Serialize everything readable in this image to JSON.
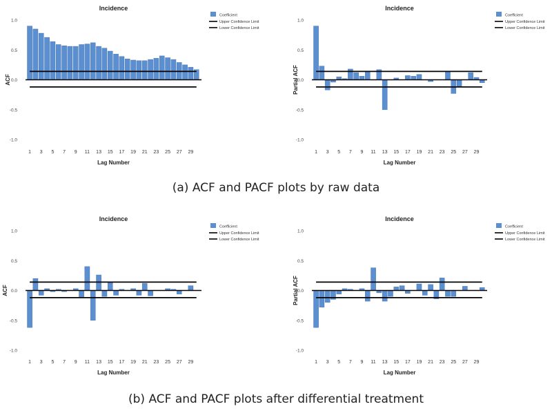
{
  "captions": {
    "top": "(a) ACF and PACF plots by raw data",
    "bottom": "(b) ACF and PACF plots after differential treatment"
  },
  "colors": {
    "bar": "#5b8fcf",
    "bar_edge": "#3f6fae",
    "axis": "#000000",
    "text": "#222222"
  },
  "chart_data": [
    {
      "type": "bar",
      "title": "Incidence",
      "xlabel": "Lag Number",
      "ylabel": "ACF",
      "ylim": [
        -1.0,
        1.0
      ],
      "yticks": [
        "1.0",
        "0.5",
        "0.0",
        "-0.5",
        "-1.0"
      ],
      "xticks": [
        "1",
        "3",
        "5",
        "7",
        "9",
        "11",
        "13",
        "15",
        "17",
        "19",
        "21",
        "23",
        "25",
        "27",
        "29"
      ],
      "legend": [
        "Coefficient",
        "Upper Confidence Limit",
        "Lower Confidence Limit"
      ],
      "legend_position": "top-right",
      "lags": [
        1,
        2,
        3,
        4,
        5,
        6,
        7,
        8,
        9,
        10,
        11,
        12,
        13,
        14,
        15,
        16,
        17,
        18,
        19,
        20,
        21,
        22,
        23,
        24,
        25,
        26,
        27,
        28,
        29,
        30
      ],
      "values": [
        0.9,
        0.85,
        0.78,
        0.71,
        0.64,
        0.59,
        0.57,
        0.56,
        0.56,
        0.59,
        0.6,
        0.62,
        0.56,
        0.53,
        0.48,
        0.43,
        0.39,
        0.35,
        0.33,
        0.32,
        0.32,
        0.34,
        0.36,
        0.4,
        0.37,
        0.34,
        0.29,
        0.25,
        0.21,
        0.17
      ],
      "upper_limit": [
        0.14,
        0.14,
        0.14,
        0.14,
        0.14,
        0.14,
        0.14,
        0.14,
        0.14,
        0.14,
        0.14,
        0.14,
        0.14,
        0.14,
        0.14,
        0.14,
        0.14,
        0.14,
        0.14,
        0.14,
        0.14,
        0.14,
        0.14,
        0.14,
        0.14,
        0.14,
        0.14,
        0.14,
        0.14,
        0.14
      ],
      "lower_limit": [
        -0.12,
        -0.12,
        -0.12,
        -0.12,
        -0.12,
        -0.12,
        -0.12,
        -0.12,
        -0.12,
        -0.12,
        -0.12,
        -0.12,
        -0.12,
        -0.12,
        -0.12,
        -0.12,
        -0.12,
        -0.12,
        -0.12,
        -0.12,
        -0.12,
        -0.12,
        -0.12,
        -0.12,
        -0.12,
        -0.12,
        -0.12,
        -0.12,
        -0.12,
        -0.12
      ]
    },
    {
      "type": "bar",
      "title": "Incidence",
      "xlabel": "Lag Number",
      "ylabel": "Partial ACF",
      "ylim": [
        -1.0,
        1.0
      ],
      "yticks": [
        "1.0",
        "0.5",
        "0.0",
        "-0.5",
        "-1.0"
      ],
      "xticks": [
        "1",
        "3",
        "5",
        "7",
        "9",
        "11",
        "13",
        "15",
        "17",
        "19",
        "21",
        "23",
        "25",
        "27",
        "29"
      ],
      "legend": [
        "Coefficient",
        "Upper Confidence Limit",
        "Lower Confidence Limit"
      ],
      "legend_position": "top-right",
      "lags": [
        1,
        2,
        3,
        4,
        5,
        6,
        7,
        8,
        9,
        10,
        11,
        12,
        13,
        14,
        15,
        16,
        17,
        18,
        19,
        20,
        21,
        22,
        23,
        24,
        25,
        26,
        27,
        28,
        29,
        30
      ],
      "values": [
        0.9,
        0.23,
        -0.17,
        -0.04,
        0.05,
        0.02,
        0.18,
        0.12,
        0.06,
        0.14,
        0.0,
        0.17,
        -0.5,
        0.0,
        0.03,
        0.0,
        0.07,
        0.06,
        0.09,
        0.0,
        -0.03,
        0.0,
        0.0,
        0.14,
        -0.23,
        -0.11,
        0.0,
        0.12,
        0.04,
        -0.05
      ],
      "upper_limit": [
        0.14,
        0.14,
        0.14,
        0.14,
        0.14,
        0.14,
        0.14,
        0.14,
        0.14,
        0.14,
        0.14,
        0.14,
        0.14,
        0.14,
        0.14,
        0.14,
        0.14,
        0.14,
        0.14,
        0.14,
        0.14,
        0.14,
        0.14,
        0.14,
        0.14,
        0.14,
        0.14,
        0.14,
        0.14,
        0.14
      ],
      "lower_limit": [
        -0.12,
        -0.12,
        -0.12,
        -0.12,
        -0.12,
        -0.12,
        -0.12,
        -0.12,
        -0.12,
        -0.12,
        -0.12,
        -0.12,
        -0.12,
        -0.12,
        -0.12,
        -0.12,
        -0.12,
        -0.12,
        -0.12,
        -0.12,
        -0.12,
        -0.12,
        -0.12,
        -0.12,
        -0.12,
        -0.12,
        -0.12,
        -0.12,
        -0.12,
        -0.12
      ]
    },
    {
      "type": "bar",
      "title": "Incidence",
      "xlabel": "Lag Number",
      "ylabel": "ACF",
      "ylim": [
        -1.0,
        1.0
      ],
      "yticks": [
        "1.0",
        "0.5",
        "0.0",
        "-0.5",
        "-1.0"
      ],
      "xticks": [
        "1",
        "3",
        "5",
        "7",
        "9",
        "11",
        "13",
        "15",
        "17",
        "19",
        "21",
        "23",
        "25",
        "27",
        "29"
      ],
      "legend": [
        "Coefficient",
        "Upper Confidence Limit",
        "Lower Confidence Limit"
      ],
      "legend_position": "top-right",
      "lags": [
        1,
        2,
        3,
        4,
        5,
        6,
        7,
        8,
        9,
        10,
        11,
        12,
        13,
        14,
        15,
        16,
        17,
        18,
        19,
        20,
        21,
        22,
        23,
        24,
        25,
        26,
        27,
        28,
        29,
        30
      ],
      "values": [
        -0.62,
        0.2,
        -0.08,
        0.03,
        -0.02,
        0.02,
        -0.02,
        0.0,
        0.03,
        -0.12,
        0.4,
        -0.5,
        0.26,
        -0.1,
        0.13,
        -0.08,
        0.02,
        0.0,
        0.03,
        -0.08,
        0.12,
        -0.09,
        0.0,
        0.0,
        0.03,
        0.02,
        -0.06,
        0.0,
        0.08,
        0.0
      ],
      "upper_limit": [
        0.14,
        0.14,
        0.14,
        0.14,
        0.14,
        0.14,
        0.14,
        0.14,
        0.14,
        0.14,
        0.14,
        0.14,
        0.14,
        0.14,
        0.14,
        0.14,
        0.14,
        0.14,
        0.14,
        0.14,
        0.14,
        0.14,
        0.14,
        0.14,
        0.14,
        0.14,
        0.14,
        0.14,
        0.14,
        0.14
      ],
      "lower_limit": [
        -0.12,
        -0.12,
        -0.12,
        -0.12,
        -0.12,
        -0.12,
        -0.12,
        -0.12,
        -0.12,
        -0.12,
        -0.12,
        -0.12,
        -0.12,
        -0.12,
        -0.12,
        -0.12,
        -0.12,
        -0.12,
        -0.12,
        -0.12,
        -0.12,
        -0.12,
        -0.12,
        -0.12,
        -0.12,
        -0.12,
        -0.12,
        -0.12,
        -0.12,
        -0.12
      ]
    },
    {
      "type": "bar",
      "title": "Incidence",
      "xlabel": "Lag Number",
      "ylabel": "Partial ACF",
      "ylim": [
        -1.0,
        1.0
      ],
      "yticks": [
        "1.0",
        "0.5",
        "0.0",
        "-0.5",
        "-1.0"
      ],
      "xticks": [
        "1",
        "3",
        "5",
        "7",
        "9",
        "11",
        "13",
        "15",
        "17",
        "19",
        "21",
        "23",
        "25",
        "27",
        "29"
      ],
      "legend": [
        "Coefficient",
        "Upper Confidence Limit",
        "Lower Confidence Limit"
      ],
      "legend_position": "top-right",
      "lags": [
        1,
        2,
        3,
        4,
        5,
        6,
        7,
        8,
        9,
        10,
        11,
        12,
        13,
        14,
        15,
        16,
        17,
        18,
        19,
        20,
        21,
        22,
        23,
        24,
        25,
        26,
        27,
        28,
        29,
        30
      ],
      "values": [
        -0.62,
        -0.28,
        -0.2,
        -0.15,
        -0.06,
        0.03,
        0.02,
        0.0,
        0.03,
        -0.18,
        0.38,
        -0.04,
        -0.18,
        -0.1,
        0.06,
        0.08,
        -0.05,
        0.0,
        0.11,
        -0.08,
        0.1,
        -0.14,
        0.21,
        -0.1,
        -0.1,
        0.0,
        0.07,
        0.0,
        0.0,
        0.05
      ],
      "upper_limit": [
        0.14,
        0.14,
        0.14,
        0.14,
        0.14,
        0.14,
        0.14,
        0.14,
        0.14,
        0.14,
        0.14,
        0.14,
        0.14,
        0.14,
        0.14,
        0.14,
        0.14,
        0.14,
        0.14,
        0.14,
        0.14,
        0.14,
        0.14,
        0.14,
        0.14,
        0.14,
        0.14,
        0.14,
        0.14,
        0.14
      ],
      "lower_limit": [
        -0.12,
        -0.12,
        -0.12,
        -0.12,
        -0.12,
        -0.12,
        -0.12,
        -0.12,
        -0.12,
        -0.12,
        -0.12,
        -0.12,
        -0.12,
        -0.12,
        -0.12,
        -0.12,
        -0.12,
        -0.12,
        -0.12,
        -0.12,
        -0.12,
        -0.12,
        -0.12,
        -0.12,
        -0.12,
        -0.12,
        -0.12,
        -0.12,
        -0.12,
        -0.12
      ]
    }
  ]
}
